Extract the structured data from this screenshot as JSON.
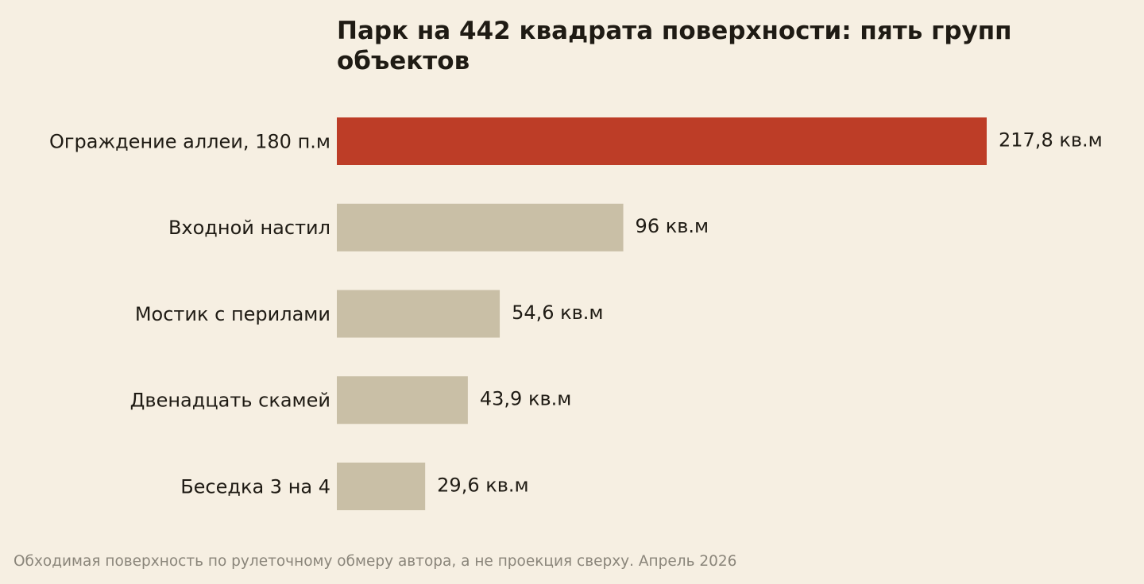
{
  "chart_data": {
    "type": "bar",
    "orientation": "horizontal",
    "title": "Парк на 442 квадрата поверхности: пять групп объектов",
    "categories": [
      "Ограждение аллеи, 180 п.м",
      "Входной настил",
      "Мостик с перилами",
      "Двенадцать скамей",
      "Беседка 3 на 4"
    ],
    "values": [
      217.8,
      96,
      54.6,
      43.9,
      29.6
    ],
    "value_labels": [
      "217,8 кв.м",
      "96 кв.м",
      "54,6 кв.м",
      "43,9 кв.м",
      "29,6 кв.м"
    ],
    "unit": "кв.м",
    "xlim": [
      0,
      217.8
    ],
    "grid": false,
    "legend": "none",
    "colors": {
      "highlight": "#bd3d27",
      "default": "#c9bfa6",
      "background": "#f6efe2",
      "text": "#1f1b14",
      "note": "#8a857a"
    },
    "highlight_index": 0,
    "footnote": "Обходимая поверхность по рулеточному обмеру автора, а не проекция сверху. Апрель 2026"
  }
}
